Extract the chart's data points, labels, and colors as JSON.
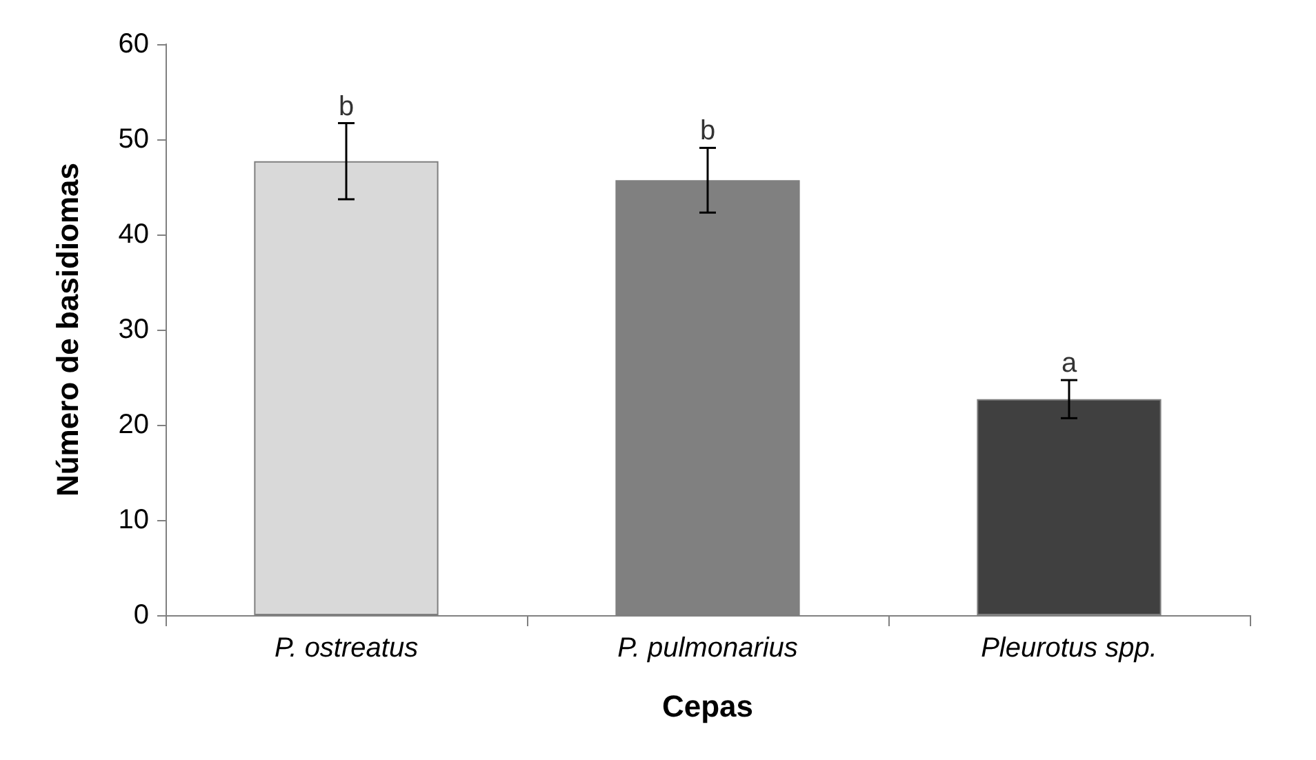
{
  "chart_data": {
    "type": "bar",
    "xlabel": "Cepas",
    "ylabel": "Número de basidiomas",
    "categories": [
      "P. ostreatus",
      "P. pulmonarius",
      "Pleurotus spp."
    ],
    "values": [
      47.7,
      45.7,
      22.7
    ],
    "colors": [
      "#d9d9d9",
      "#808080",
      "#404040"
    ],
    "errors": [
      4,
      3.4,
      2
    ],
    "ylim": [
      0,
      60
    ],
    "yticks": [
      0,
      10,
      20,
      30,
      40,
      50,
      60
    ],
    "grid": false,
    "annotations": [
      {
        "text": "b",
        "x": "P. ostreatus",
        "y": 51.7
      },
      {
        "text": "b",
        "x": "P. pulmonarius",
        "y": 49.1
      },
      {
        "text": "a",
        "x": "Pleurotus spp.",
        "y": 24.7
      }
    ]
  }
}
